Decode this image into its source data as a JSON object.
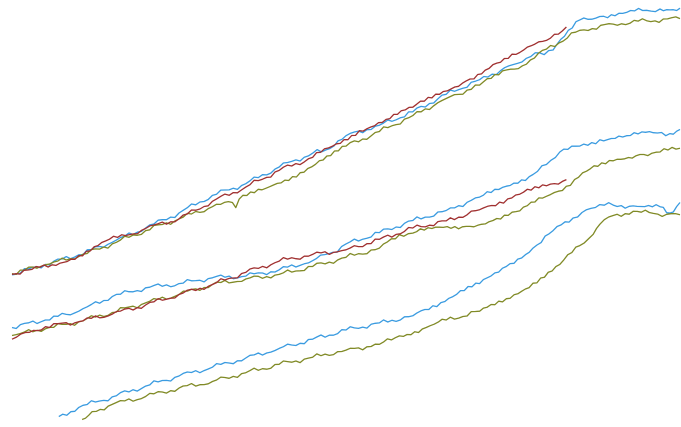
{
  "chart_data": {
    "type": "line",
    "title": "",
    "xlabel": "",
    "ylabel": "",
    "xlim": [
      0,
      100
    ],
    "ylim": [
      0,
      100
    ],
    "grid": false,
    "colors": {
      "blue": "#3a9be0",
      "olive": "#808a26",
      "red": "#a03030"
    },
    "series": [
      {
        "group": 1,
        "color": "blue",
        "points": [
          [
            0,
            35.2
          ],
          [
            5,
            37.7
          ],
          [
            10,
            40.0
          ],
          [
            15,
            43.0
          ],
          [
            20,
            46.4
          ],
          [
            25,
            50.0
          ],
          [
            30,
            54.2
          ],
          [
            35,
            57.0
          ],
          [
            40,
            61.0
          ],
          [
            45,
            64.3
          ],
          [
            47,
            65.1
          ],
          [
            50,
            68.5
          ],
          [
            55,
            71.0
          ],
          [
            60,
            74.2
          ],
          [
            65,
            78.4
          ],
          [
            70,
            81.9
          ],
          [
            75,
            85.5
          ],
          [
            77,
            87.0
          ],
          [
            79,
            88.3
          ],
          [
            81,
            89.0
          ],
          [
            85,
            96.2
          ],
          [
            88,
            97.0
          ],
          [
            92,
            98.0
          ],
          [
            95,
            98.5
          ],
          [
            97,
            98.8
          ],
          [
            98.5,
            98.6
          ],
          [
            100,
            99.0
          ]
        ]
      },
      {
        "group": 1,
        "color": "olive",
        "points": [
          [
            0,
            35.5
          ],
          [
            5,
            37.6
          ],
          [
            10,
            39.6
          ],
          [
            15,
            42.6
          ],
          [
            20,
            45.8
          ],
          [
            25,
            48.6
          ],
          [
            30,
            51.5
          ],
          [
            33,
            52.5
          ],
          [
            33.5,
            51.3
          ],
          [
            34,
            53.3
          ],
          [
            38,
            55.9
          ],
          [
            42,
            58.7
          ],
          [
            46,
            62.5
          ],
          [
            50,
            66.0
          ],
          [
            55,
            69.5
          ],
          [
            60,
            73.3
          ],
          [
            65,
            77.4
          ],
          [
            70,
            80.6
          ],
          [
            74,
            84.2
          ],
          [
            77,
            85.6
          ],
          [
            80,
            89.2
          ],
          [
            85,
            93.7
          ],
          [
            90,
            95.2
          ],
          [
            95,
            96.0
          ],
          [
            100,
            96.5
          ]
        ]
      },
      {
        "group": 1,
        "color": "red",
        "points": [
          [
            0,
            35.3
          ],
          [
            3,
            36.5
          ],
          [
            6,
            37.6
          ],
          [
            10,
            39.8
          ],
          [
            14,
            43.3
          ],
          [
            17,
            44.6
          ],
          [
            20,
            46.3
          ],
          [
            25,
            48.6
          ],
          [
            30,
            52.8
          ],
          [
            35,
            56.2
          ],
          [
            40,
            60.2
          ],
          [
            45,
            63.3
          ],
          [
            48,
            66.0
          ],
          [
            52,
            69.7
          ],
          [
            56,
            72.4
          ],
          [
            60,
            75.3
          ],
          [
            64,
            78.4
          ],
          [
            68,
            81.6
          ],
          [
            72,
            85.5
          ],
          [
            76,
            88.4
          ],
          [
            80,
            91.3
          ],
          [
            83,
            94.5
          ]
        ]
      },
      {
        "group": 2,
        "color": "blue",
        "points": [
          [
            0,
            22.6
          ],
          [
            5,
            24.4
          ],
          [
            10,
            26.5
          ],
          [
            15,
            30.0
          ],
          [
            20,
            32.1
          ],
          [
            25,
            33.1
          ],
          [
            30,
            34.5
          ],
          [
            35,
            34.9
          ],
          [
            40,
            36.4
          ],
          [
            45,
            38.6
          ],
          [
            48,
            40.6
          ],
          [
            50,
            42.6
          ],
          [
            55,
            45.3
          ],
          [
            60,
            48.2
          ],
          [
            65,
            50.6
          ],
          [
            70,
            53.8
          ],
          [
            74,
            56.4
          ],
          [
            78,
            59.2
          ],
          [
            80,
            61.6
          ],
          [
            82,
            64.6
          ],
          [
            85,
            66.0
          ],
          [
            88,
            67.5
          ],
          [
            92,
            68.5
          ],
          [
            96,
            69.2
          ],
          [
            98.5,
            69.0
          ],
          [
            100,
            70.0
          ]
        ]
      },
      {
        "group": 2,
        "color": "olive",
        "points": [
          [
            0,
            20.7
          ],
          [
            5,
            22.3
          ],
          [
            10,
            24.0
          ],
          [
            15,
            26.2
          ],
          [
            20,
            28.5
          ],
          [
            25,
            30.5
          ],
          [
            30,
            32.9
          ],
          [
            35,
            34.2
          ],
          [
            40,
            35.3
          ],
          [
            45,
            37.2
          ],
          [
            50,
            39.4
          ],
          [
            55,
            41.6
          ],
          [
            58,
            44.8
          ],
          [
            60,
            45.2
          ],
          [
            64,
            46.6
          ],
          [
            68,
            46.8
          ],
          [
            72,
            48.2
          ],
          [
            76,
            50.5
          ],
          [
            80,
            54.0
          ],
          [
            83,
            56.4
          ],
          [
            86,
            60.0
          ],
          [
            90,
            62.5
          ],
          [
            94,
            64.0
          ],
          [
            97,
            64.6
          ],
          [
            100,
            65.5
          ]
        ]
      },
      {
        "group": 2,
        "color": "red",
        "points": [
          [
            0,
            19.8
          ],
          [
            2,
            21.4
          ],
          [
            5,
            22.8
          ],
          [
            10,
            24.0
          ],
          [
            15,
            25.8
          ],
          [
            20,
            28.0
          ],
          [
            25,
            30.5
          ],
          [
            30,
            32.9
          ],
          [
            35,
            35.8
          ],
          [
            40,
            38.5
          ],
          [
            45,
            40.1
          ],
          [
            50,
            41.2
          ],
          [
            55,
            43.7
          ],
          [
            60,
            46.4
          ],
          [
            65,
            48.1
          ],
          [
            70,
            50.8
          ],
          [
            73,
            52.6
          ],
          [
            76,
            54.5
          ],
          [
            80,
            56.5
          ],
          [
            83,
            58.0
          ]
        ]
      },
      {
        "group": 3,
        "color": "blue",
        "points": [
          [
            7,
            1.3
          ],
          [
            10,
            3.5
          ],
          [
            15,
            6.0
          ],
          [
            20,
            8.6
          ],
          [
            25,
            11.0
          ],
          [
            30,
            13.1
          ],
          [
            35,
            15.3
          ],
          [
            40,
            17.6
          ],
          [
            45,
            19.8
          ],
          [
            50,
            22.0
          ],
          [
            55,
            23.7
          ],
          [
            60,
            25.4
          ],
          [
            63,
            27.8
          ],
          [
            66,
            30.0
          ],
          [
            70,
            33.1
          ],
          [
            74,
            37.2
          ],
          [
            78,
            41.6
          ],
          [
            81,
            45.8
          ],
          [
            84,
            48.8
          ],
          [
            86,
            50.8
          ],
          [
            88,
            52.0
          ],
          [
            90,
            51.9
          ],
          [
            93,
            51.7
          ],
          [
            97,
            51.5
          ],
          [
            98.5,
            50.0
          ],
          [
            100,
            52.5
          ]
        ]
      },
      {
        "group": 3,
        "color": "olive",
        "points": [
          [
            10.5,
            0.6
          ],
          [
            12,
            2.5
          ],
          [
            15,
            4.2
          ],
          [
            20,
            6.1
          ],
          [
            25,
            8.1
          ],
          [
            30,
            9.7
          ],
          [
            35,
            11.8
          ],
          [
            40,
            13.8
          ],
          [
            45,
            15.5
          ],
          [
            50,
            17.2
          ],
          [
            55,
            18.6
          ],
          [
            58,
            20.6
          ],
          [
            62,
            22.6
          ],
          [
            65,
            24.4
          ],
          [
            70,
            26.5
          ],
          [
            74,
            29.5
          ],
          [
            78,
            33.2
          ],
          [
            82,
            37.7
          ],
          [
            85,
            42.2
          ],
          [
            87,
            44.9
          ],
          [
            88,
            47.3
          ],
          [
            90,
            49.4
          ],
          [
            93,
            50.4
          ],
          [
            96,
            49.9
          ],
          [
            98,
            49.7
          ],
          [
            100,
            49.6
          ]
        ]
      }
    ]
  }
}
